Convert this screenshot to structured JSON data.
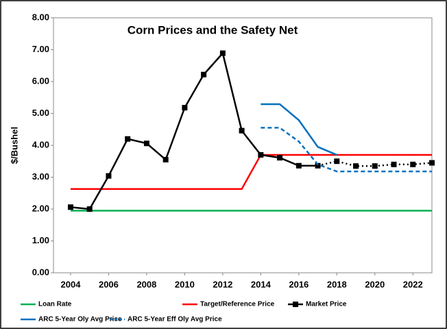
{
  "chart_data": {
    "type": "line",
    "title": "Corn Prices and the Safety Net",
    "y_label": "$/Bushel",
    "xlim": [
      2003.1,
      2023.0
    ],
    "xticks": [
      2004,
      2006,
      2008,
      2010,
      2012,
      2014,
      2016,
      2018,
      2020,
      2022
    ],
    "ylim": [
      0,
      8
    ],
    "yticks": [
      {
        "value": 0,
        "label": "0.00"
      },
      {
        "value": 1,
        "label": "1.00"
      },
      {
        "value": 2,
        "label": "2.00"
      },
      {
        "value": 3,
        "label": "3.00"
      },
      {
        "value": 4,
        "label": "4.00"
      },
      {
        "value": 5,
        "label": "5.00"
      },
      {
        "value": 6,
        "label": "6.00"
      },
      {
        "value": 7,
        "label": "7.00"
      },
      {
        "value": 8,
        "label": "8.00"
      }
    ],
    "grid": false,
    "legend": "bottom",
    "series": [
      {
        "name": "Loan Rate",
        "color": "#00b050",
        "style": "solid",
        "x": [
          2004,
          2023
        ],
        "values": [
          1.95,
          1.95
        ]
      },
      {
        "name": "Target/Reference Price",
        "color": "#ff0000",
        "style": "solid",
        "x": [
          2004,
          2013,
          2014,
          2023
        ],
        "values": [
          2.63,
          2.63,
          3.7,
          3.7
        ]
      },
      {
        "name": "Market Price",
        "color": "#000000",
        "style": "solid",
        "markers": true,
        "projection_start": 2017,
        "x": [
          2004,
          2005,
          2006,
          2007,
          2008,
          2009,
          2010,
          2011,
          2012,
          2013,
          2014,
          2015,
          2016,
          2017,
          2018,
          2019,
          2020,
          2021,
          2022,
          2023
        ],
        "values": [
          2.06,
          2.0,
          3.04,
          4.2,
          4.06,
          3.55,
          5.18,
          6.22,
          6.89,
          4.46,
          3.7,
          3.61,
          3.36,
          3.36,
          3.5,
          3.35,
          3.35,
          3.4,
          3.4,
          3.45
        ]
      },
      {
        "name": "ARC 5-Year Oly Avg Price",
        "color": "#0070c0",
        "style": "solid",
        "x": [
          2014,
          2015,
          2016,
          2017,
          2018
        ],
        "values": [
          5.29,
          5.29,
          4.79,
          3.95,
          3.7
        ]
      },
      {
        "name": "ARC 5-Year Eff Oly Avg Price",
        "color": "#0070c0",
        "style": "dashed",
        "x": [
          2014,
          2015,
          2016,
          2017,
          2018,
          2023
        ],
        "values": [
          4.55,
          4.55,
          4.12,
          3.4,
          3.18,
          3.18
        ]
      }
    ]
  }
}
